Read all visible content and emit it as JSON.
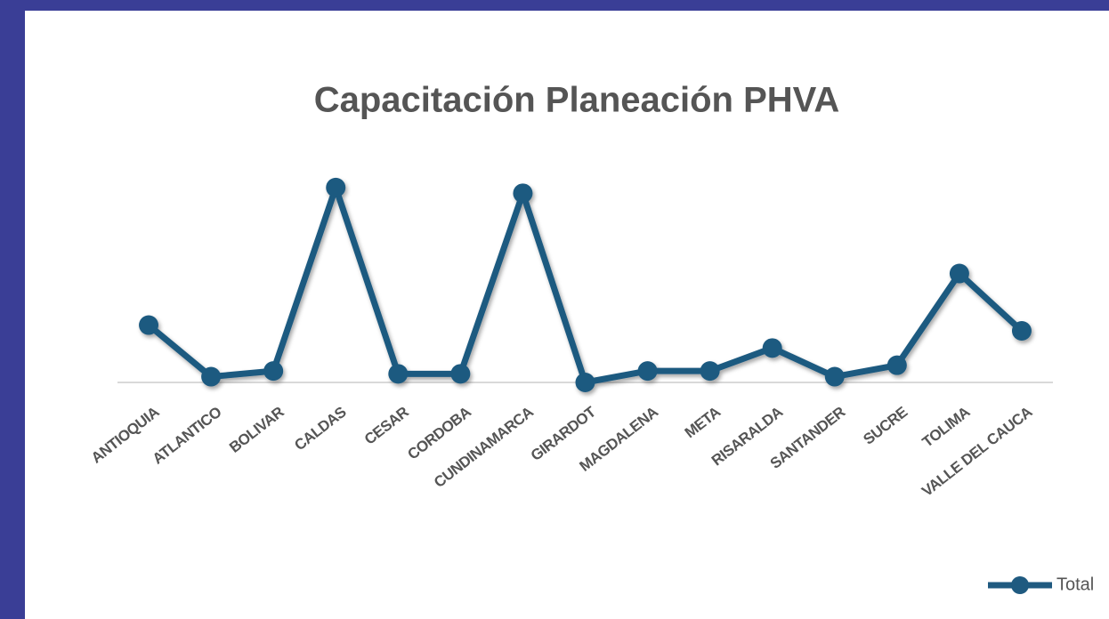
{
  "chart_data": {
    "type": "line",
    "title": "Capacitación Planeación PHVA",
    "categories": [
      "ANTIOQUIA",
      "ATLANTICO",
      "BOLIVAR",
      "CALDAS",
      "CESAR",
      "CORDOBA",
      "CUNDINAMARCA",
      "GIRARDOT",
      "MAGDALENA",
      "META",
      "RISARALDA",
      "SANTANDER",
      "SUCRE",
      "TOLIMA",
      "VALLE DEL CAUCA"
    ],
    "series": [
      {
        "name": "Total",
        "color": "#1f5a80",
        "values": [
          10,
          1,
          2,
          34,
          1.5,
          1.5,
          33,
          0,
          2,
          2,
          6,
          1,
          3,
          19,
          9
        ]
      }
    ],
    "ylim": [
      0,
      36
    ],
    "legend": "bottom-right"
  }
}
